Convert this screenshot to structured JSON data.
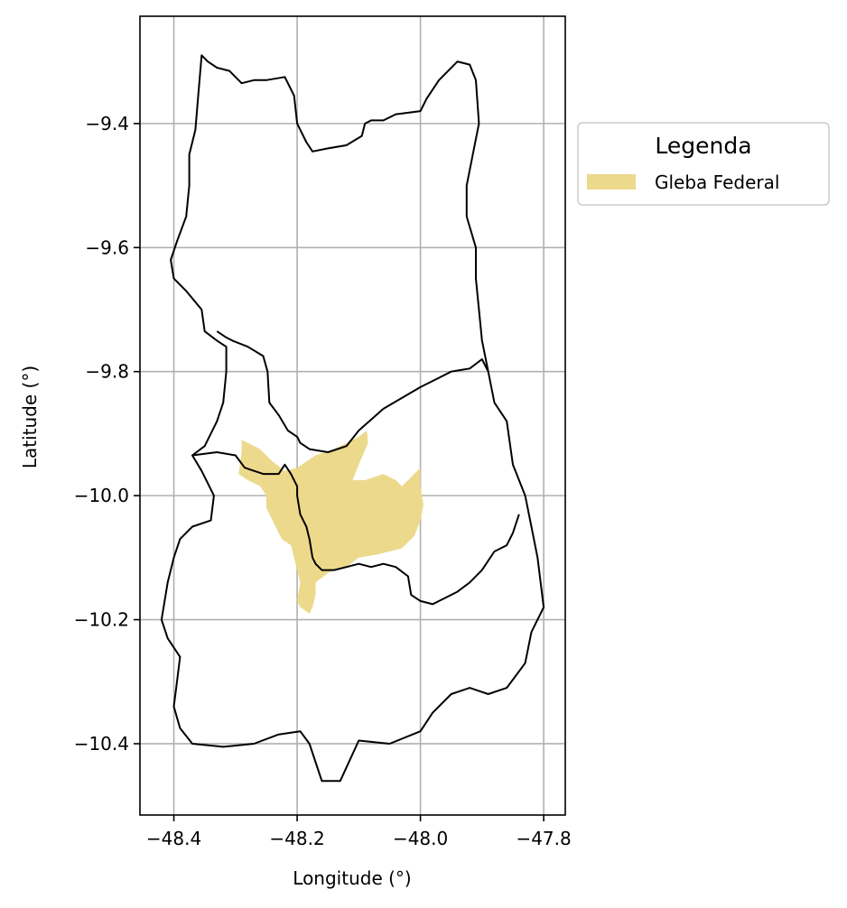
{
  "chart_data": {
    "type": "map",
    "title": "",
    "xlabel": "Longitude (°)",
    "ylabel": "Latitude (°)",
    "xlim": [
      -48.455,
      -47.765
    ],
    "ylim": [
      -10.515,
      -9.227
    ],
    "xticks": [
      -48.4,
      -48.2,
      -48.0,
      -47.8
    ],
    "xtick_labels": [
      "−48.4",
      "−48.2",
      "−48.0",
      "−47.8"
    ],
    "yticks": [
      -9.4,
      -9.6,
      -9.8,
      -10.0,
      -10.2,
      -10.4
    ],
    "ytick_labels": [
      "−9.4",
      "−9.6",
      "−9.8",
      "−10.0",
      "−10.2",
      "−10.4"
    ],
    "grid": true,
    "legend": {
      "title": "Legenda",
      "placement": "outside-upper-right",
      "items": [
        {
          "label": "Gleba Federal",
          "color": "#ecd98c"
        }
      ]
    },
    "layers": {
      "gleba_federal": {
        "name": "Gleba Federal",
        "color": "#ecd98c",
        "coords": [
          [
            -48.29,
            -9.91
          ],
          [
            -48.26,
            -9.925
          ],
          [
            -48.24,
            -9.945
          ],
          [
            -48.22,
            -9.96
          ],
          [
            -48.2,
            -9.955
          ],
          [
            -48.17,
            -9.935
          ],
          [
            -48.14,
            -9.925
          ],
          [
            -48.12,
            -9.915
          ],
          [
            -48.1,
            -9.905
          ],
          [
            -48.087,
            -9.895
          ],
          [
            -48.085,
            -9.915
          ],
          [
            -48.1,
            -9.95
          ],
          [
            -48.11,
            -9.975
          ],
          [
            -48.09,
            -9.975
          ],
          [
            -48.06,
            -9.965
          ],
          [
            -48.04,
            -9.975
          ],
          [
            -48.03,
            -9.985
          ],
          [
            -48.0,
            -9.955
          ],
          [
            -48.0,
            -9.985
          ],
          [
            -47.995,
            -10.015
          ],
          [
            -48.0,
            -10.04
          ],
          [
            -48.01,
            -10.065
          ],
          [
            -48.03,
            -10.085
          ],
          [
            -48.07,
            -10.095
          ],
          [
            -48.1,
            -10.1
          ],
          [
            -48.12,
            -10.115
          ],
          [
            -48.14,
            -10.12
          ],
          [
            -48.15,
            -10.125
          ],
          [
            -48.17,
            -10.14
          ],
          [
            -48.17,
            -10.16
          ],
          [
            -48.175,
            -10.18
          ],
          [
            -48.18,
            -10.19
          ],
          [
            -48.195,
            -10.18
          ],
          [
            -48.2,
            -10.17
          ],
          [
            -48.195,
            -10.14
          ],
          [
            -48.2,
            -10.12
          ],
          [
            -48.21,
            -10.08
          ],
          [
            -48.225,
            -10.07
          ],
          [
            -48.24,
            -10.04
          ],
          [
            -48.25,
            -10.02
          ],
          [
            -48.25,
            -10.0
          ],
          [
            -48.26,
            -9.985
          ],
          [
            -48.28,
            -9.975
          ],
          [
            -48.295,
            -9.965
          ],
          [
            -48.29,
            -9.93
          ]
        ]
      },
      "boundaries": [
        {
          "name": "outer",
          "coords": [
            [
              -48.355,
              -9.29
            ],
            [
              -48.345,
              -9.3
            ],
            [
              -48.33,
              -9.31
            ],
            [
              -48.31,
              -9.315
            ],
            [
              -48.29,
              -9.335
            ],
            [
              -48.27,
              -9.33
            ],
            [
              -48.25,
              -9.33
            ],
            [
              -48.22,
              -9.325
            ],
            [
              -48.205,
              -9.355
            ],
            [
              -48.2,
              -9.4
            ],
            [
              -48.185,
              -9.43
            ],
            [
              -48.175,
              -9.445
            ],
            [
              -48.15,
              -9.44
            ],
            [
              -48.12,
              -9.435
            ],
            [
              -48.095,
              -9.42
            ],
            [
              -48.09,
              -9.4
            ],
            [
              -48.08,
              -9.395
            ],
            [
              -48.06,
              -9.395
            ],
            [
              -48.04,
              -9.385
            ],
            [
              -48.0,
              -9.38
            ],
            [
              -47.99,
              -9.36
            ],
            [
              -47.97,
              -9.33
            ],
            [
              -47.94,
              -9.3
            ],
            [
              -47.92,
              -9.305
            ],
            [
              -47.91,
              -9.33
            ],
            [
              -47.905,
              -9.4
            ],
            [
              -47.915,
              -9.45
            ],
            [
              -47.925,
              -9.5
            ],
            [
              -47.925,
              -9.55
            ],
            [
              -47.91,
              -9.6
            ],
            [
              -47.91,
              -9.65
            ],
            [
              -47.905,
              -9.7
            ],
            [
              -47.9,
              -9.75
            ],
            [
              -47.89,
              -9.8
            ],
            [
              -47.88,
              -9.85
            ],
            [
              -47.86,
              -9.88
            ],
            [
              -47.85,
              -9.95
            ],
            [
              -47.83,
              -10.0
            ],
            [
              -47.82,
              -10.05
            ],
            [
              -47.81,
              -10.1
            ],
            [
              -47.8,
              -10.18
            ],
            [
              -47.82,
              -10.22
            ],
            [
              -47.83,
              -10.27
            ],
            [
              -47.86,
              -10.31
            ],
            [
              -47.89,
              -10.32
            ],
            [
              -47.92,
              -10.31
            ],
            [
              -47.95,
              -10.32
            ],
            [
              -47.98,
              -10.35
            ],
            [
              -48.0,
              -10.38
            ],
            [
              -48.05,
              -10.4
            ],
            [
              -48.1,
              -10.395
            ],
            [
              -48.13,
              -10.46
            ],
            [
              -48.16,
              -10.46
            ],
            [
              -48.18,
              -10.4
            ],
            [
              -48.195,
              -10.38
            ],
            [
              -48.23,
              -10.385
            ],
            [
              -48.27,
              -10.4
            ],
            [
              -48.32,
              -10.405
            ],
            [
              -48.37,
              -10.4
            ],
            [
              -48.39,
              -10.375
            ],
            [
              -48.4,
              -10.34
            ],
            [
              -48.395,
              -10.3
            ],
            [
              -48.39,
              -10.26
            ],
            [
              -48.41,
              -10.23
            ],
            [
              -48.42,
              -10.2
            ],
            [
              -48.41,
              -10.14
            ],
            [
              -48.4,
              -10.1
            ],
            [
              -48.39,
              -10.07
            ],
            [
              -48.37,
              -10.05
            ],
            [
              -48.34,
              -10.04
            ],
            [
              -48.335,
              -10.0
            ],
            [
              -48.355,
              -9.96
            ],
            [
              -48.37,
              -9.935
            ],
            [
              -48.35,
              -9.92
            ],
            [
              -48.33,
              -9.88
            ],
            [
              -48.32,
              -9.85
            ],
            [
              -48.315,
              -9.8
            ],
            [
              -48.315,
              -9.76
            ],
            [
              -48.33,
              -9.75
            ],
            [
              -48.35,
              -9.735
            ],
            [
              -48.355,
              -9.7
            ],
            [
              -48.38,
              -9.67
            ],
            [
              -48.4,
              -9.65
            ],
            [
              -48.405,
              -9.62
            ],
            [
              -48.395,
              -9.59
            ],
            [
              -48.38,
              -9.55
            ],
            [
              -48.375,
              -9.5
            ],
            [
              -48.375,
              -9.45
            ],
            [
              -48.365,
              -9.41
            ],
            [
              -48.36,
              -9.35
            ]
          ]
        },
        {
          "name": "north-divide",
          "coords": [
            [
              -48.33,
              -9.735
            ],
            [
              -48.315,
              -9.745
            ],
            [
              -48.305,
              -9.75
            ],
            [
              -48.28,
              -9.76
            ],
            [
              -48.255,
              -9.775
            ],
            [
              -48.248,
              -9.8
            ],
            [
              -48.245,
              -9.85
            ],
            [
              -48.23,
              -9.87
            ],
            [
              -48.215,
              -9.895
            ],
            [
              -48.2,
              -9.905
            ],
            [
              -48.195,
              -9.915
            ],
            [
              -48.18,
              -9.925
            ],
            [
              -48.15,
              -9.93
            ],
            [
              -48.12,
              -9.92
            ],
            [
              -48.1,
              -9.895
            ],
            [
              -48.06,
              -9.86
            ],
            [
              -48.0,
              -9.825
            ],
            [
              -47.97,
              -9.81
            ],
            [
              -47.95,
              -9.8
            ],
            [
              -47.92,
              -9.795
            ],
            [
              -47.9,
              -9.78
            ],
            [
              -47.89,
              -9.8
            ]
          ]
        },
        {
          "name": "middle-west-divide",
          "coords": [
            [
              -48.37,
              -9.935
            ],
            [
              -48.33,
              -9.93
            ],
            [
              -48.3,
              -9.935
            ],
            [
              -48.285,
              -9.955
            ],
            [
              -48.27,
              -9.96
            ],
            [
              -48.255,
              -9.965
            ],
            [
              -48.24,
              -9.965
            ],
            [
              -48.23,
              -9.965
            ],
            [
              -48.22,
              -9.95
            ],
            [
              -48.21,
              -9.965
            ],
            [
              -48.2,
              -9.985
            ],
            [
              -48.2,
              -10.0
            ],
            [
              -48.195,
              -10.03
            ],
            [
              -48.185,
              -10.05
            ],
            [
              -48.18,
              -10.07
            ],
            [
              -48.175,
              -10.1
            ],
            [
              -48.17,
              -10.11
            ],
            [
              -48.16,
              -10.12
            ],
            [
              -48.14,
              -10.12
            ],
            [
              -48.12,
              -10.115
            ],
            [
              -48.1,
              -10.11
            ],
            [
              -48.08,
              -10.115
            ],
            [
              -48.06,
              -10.11
            ],
            [
              -48.04,
              -10.115
            ],
            [
              -48.02,
              -10.13
            ],
            [
              -48.015,
              -10.16
            ],
            [
              -48.0,
              -10.17
            ],
            [
              -47.98,
              -10.175
            ],
            [
              -47.96,
              -10.165
            ],
            [
              -47.94,
              -10.155
            ],
            [
              -47.92,
              -10.14
            ],
            [
              -47.9,
              -10.12
            ],
            [
              -47.88,
              -10.09
            ],
            [
              -47.86,
              -10.08
            ],
            [
              -47.85,
              -10.06
            ],
            [
              -47.84,
              -10.03
            ]
          ]
        }
      ]
    }
  }
}
